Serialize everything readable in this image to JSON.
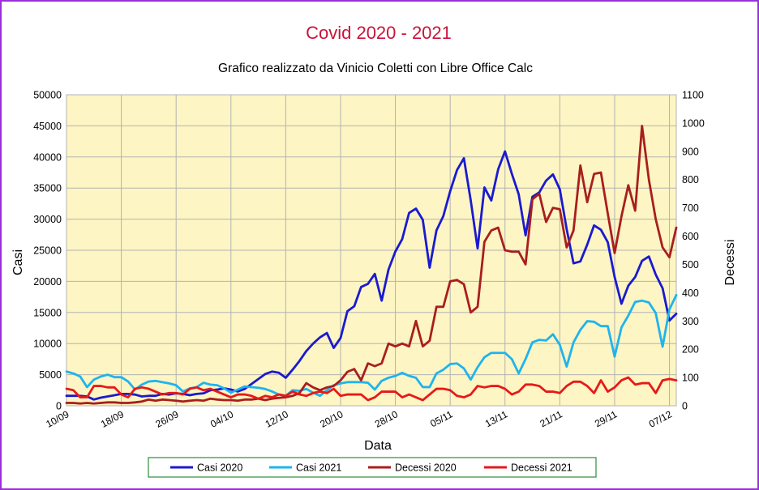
{
  "colors": {
    "title": "#c8143c",
    "plot_bg": "#fdf5c3",
    "grid": "#b3b3b3",
    "frame": "#9b30d9",
    "legend_border": "#2e8b3a"
  },
  "chart_data": {
    "type": "line",
    "title": "Covid 2020 - 2021",
    "subtitle": "Grafico realizzato da Vinicio Coletti con Libre Office Calc",
    "xlabel": "Data",
    "ylabel": "Casi",
    "y2label": "Decessi",
    "ylim": [
      0,
      50000
    ],
    "y2lim": [
      0,
      1100
    ],
    "yticks": [
      "0",
      "5000",
      "10000",
      "15000",
      "20000",
      "25000",
      "30000",
      "35000",
      "40000",
      "45000",
      "50000"
    ],
    "y2ticks": [
      "0",
      "100",
      "200",
      "300",
      "400",
      "500",
      "600",
      "700",
      "800",
      "900",
      "1000",
      "1100"
    ],
    "xtick_labels": [
      "10/09",
      "18/09",
      "26/09",
      "04/10",
      "12/10",
      "20/10",
      "28/10",
      "05/11",
      "13/11",
      "21/11",
      "29/11",
      "07/12"
    ],
    "x_start": "10/09",
    "grid": true,
    "legend_position": "bottom",
    "series": [
      {
        "name": "Casi 2020",
        "axis": "left",
        "color": "#1a1ad0",
        "values": [
          1600,
          1600,
          1600,
          1500,
          1000,
          1300,
          1500,
          1700,
          1900,
          1900,
          1800,
          1500,
          1600,
          1600,
          1900,
          1800,
          2000,
          1900,
          1700,
          1900,
          2000,
          2500,
          2600,
          2800,
          2600,
          2300,
          2700,
          3500,
          4300,
          5100,
          5500,
          5300,
          4500,
          5800,
          7200,
          8800,
          10000,
          11000,
          11700,
          9300,
          10900,
          15200,
          16000,
          19100,
          19600,
          21200,
          16900,
          21900,
          24800,
          26800,
          31000,
          31700,
          29900,
          22200,
          28200,
          30500,
          34500,
          37900,
          39800,
          33000,
          25300,
          35100,
          33000,
          38000,
          40900,
          37300,
          34000,
          27400,
          33600,
          34300,
          36200,
          37200,
          34800,
          28400,
          22900,
          23200,
          25900,
          29000,
          28300,
          26300,
          20700,
          16400,
          19300,
          20700,
          23300,
          24000,
          21100,
          18900,
          13700,
          14800
        ]
      },
      {
        "name": "Casi 2021",
        "axis": "left",
        "color": "#1eb4ee",
        "values": [
          5500,
          5200,
          4700,
          3000,
          4200,
          4700,
          5000,
          4600,
          4600,
          3900,
          2600,
          3400,
          3900,
          4000,
          3800,
          3600,
          3300,
          2300,
          2800,
          3000,
          3700,
          3400,
          3300,
          2800,
          2100,
          2600,
          3100,
          3000,
          2900,
          2700,
          2300,
          1800,
          1600,
          2500,
          2400,
          2700,
          2100,
          1600,
          2500,
          3300,
          3600,
          3800,
          3800,
          3800,
          3700,
          2600,
          4000,
          4500,
          4800,
          5300,
          4800,
          4500,
          3000,
          3000,
          5200,
          5800,
          6700,
          6800,
          6000,
          4200,
          6200,
          7800,
          8500,
          8500,
          8500,
          7500,
          5200,
          7500,
          10200,
          10600,
          10500,
          11500,
          9800,
          6300,
          10200,
          12200,
          13600,
          13500,
          12800,
          12800,
          7900,
          12600,
          14500,
          16700,
          16900,
          16600,
          14900,
          9500,
          15500,
          17800
        ]
      },
      {
        "name": "Decessi 2020",
        "axis": "right",
        "color": "#a81e1e",
        "values": [
          10,
          10,
          8,
          10,
          8,
          10,
          12,
          12,
          10,
          10,
          12,
          15,
          22,
          18,
          22,
          20,
          18,
          15,
          18,
          20,
          18,
          25,
          22,
          20,
          20,
          18,
          22,
          22,
          25,
          20,
          25,
          28,
          30,
          35,
          45,
          80,
          65,
          55,
          65,
          70,
          90,
          120,
          130,
          90,
          150,
          140,
          150,
          220,
          210,
          220,
          210,
          300,
          210,
          230,
          350,
          350,
          440,
          445,
          430,
          330,
          350,
          580,
          620,
          630,
          550,
          545,
          545,
          500,
          730,
          750,
          650,
          700,
          695,
          560,
          620,
          850,
          720,
          820,
          825,
          680,
          540,
          670,
          780,
          690,
          990,
          800,
          660,
          560,
          525,
          630
        ]
      },
      {
        "name": "Decessi 2021",
        "axis": "right",
        "color": "#e61919",
        "values": [
          60,
          55,
          30,
          30,
          70,
          70,
          65,
          65,
          40,
          30,
          60,
          65,
          60,
          50,
          40,
          45,
          45,
          40,
          60,
          65,
          55,
          60,
          50,
          40,
          30,
          40,
          40,
          35,
          25,
          35,
          30,
          40,
          35,
          50,
          40,
          35,
          45,
          50,
          45,
          60,
          35,
          40,
          40,
          40,
          20,
          30,
          50,
          50,
          50,
          30,
          40,
          30,
          20,
          40,
          60,
          60,
          55,
          35,
          30,
          40,
          70,
          65,
          70,
          70,
          60,
          40,
          50,
          75,
          75,
          70,
          50,
          50,
          45,
          70,
          85,
          85,
          70,
          45,
          90,
          50,
          65,
          90,
          100,
          75,
          80,
          80,
          45,
          90,
          95,
          90
        ]
      }
    ]
  }
}
